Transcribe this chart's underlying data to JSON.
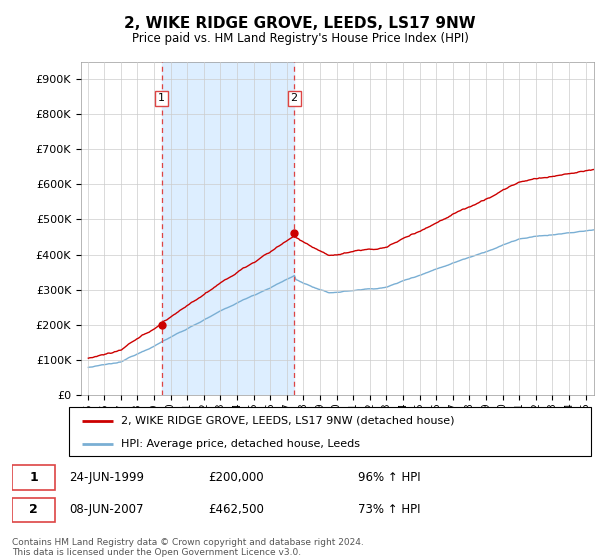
{
  "title": "2, WIKE RIDGE GROVE, LEEDS, LS17 9NW",
  "subtitle": "Price paid vs. HM Land Registry's House Price Index (HPI)",
  "legend_line1": "2, WIKE RIDGE GROVE, LEEDS, LS17 9NW (detached house)",
  "legend_line2": "HPI: Average price, detached house, Leeds",
  "sale1_date": "24-JUN-1999",
  "sale1_price": "£200,000",
  "sale1_hpi": "96% ↑ HPI",
  "sale2_date": "08-JUN-2007",
  "sale2_price": "£462,500",
  "sale2_hpi": "73% ↑ HPI",
  "footer": "Contains HM Land Registry data © Crown copyright and database right 2024.\nThis data is licensed under the Open Government Licence v3.0.",
  "property_color": "#cc0000",
  "hpi_color": "#7aafd4",
  "vline_color": "#dd4444",
  "shade_color": "#ddeeff",
  "ylim_min": 0,
  "ylim_max": 950000,
  "yticks": [
    0,
    100000,
    200000,
    300000,
    400000,
    500000,
    600000,
    700000,
    800000,
    900000
  ],
  "sale1_year": 1999.46,
  "sale1_value": 200000,
  "sale2_year": 2007.44,
  "sale2_value": 462500,
  "bg_color": "#ffffff",
  "grid_color": "#cccccc"
}
